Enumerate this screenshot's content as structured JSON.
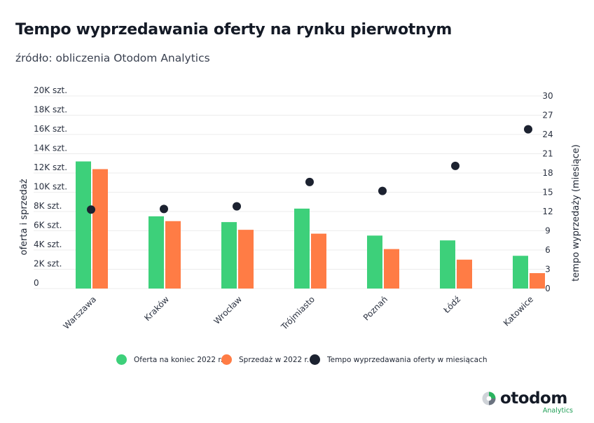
{
  "header": {
    "title": "Tempo wyprzedawania oferty na rynku pierwotnym",
    "subtitle": "źródło: obliczenia Otodom Analytics"
  },
  "colors": {
    "offer": "#3dd07a",
    "sales": "#ff7c45",
    "tempo": "#1c2230",
    "grid": "#ececec"
  },
  "chart_data": {
    "type": "bar",
    "categories": [
      "Warszawa",
      "Kraków",
      "Wrocław",
      "Trójmiasto",
      "Poznań",
      "Łódź",
      "Katowice"
    ],
    "series": [
      {
        "name": "Oferta na koniec 2022 r.",
        "type": "bar",
        "axis": "left",
        "values": [
          13200,
          7500,
          6900,
          8300,
          5500,
          5000,
          3400
        ]
      },
      {
        "name": "Sprzedaż w 2022 r.",
        "type": "bar",
        "axis": "left",
        "values": [
          12400,
          7000,
          6100,
          5700,
          4100,
          3000,
          1600
        ]
      },
      {
        "name": "Tempo wyprzedawania oferty w miesiącach",
        "type": "scatter",
        "axis": "right",
        "values": [
          12.3,
          12.4,
          12.8,
          16.6,
          15.2,
          19.1,
          24.8
        ]
      }
    ],
    "y_left": {
      "label": "oferta i sprzedaż",
      "ylim": [
        0,
        20000
      ],
      "ticks": [
        0,
        2000,
        4000,
        6000,
        8000,
        10000,
        12000,
        14000,
        16000,
        18000,
        20000
      ],
      "tick_labels": [
        "0",
        "2K szt.",
        "4K szt.",
        "6K szt.",
        "8K szt.",
        "10K szt.",
        "12K szt.",
        "14K szt.",
        "16K szt.",
        "18K szt.",
        "20K szt."
      ]
    },
    "y_right": {
      "label": "tempo wyprzedaży (miesiące)",
      "ylim": [
        0,
        30
      ],
      "ticks": [
        0,
        3,
        6,
        9,
        12,
        15,
        18,
        21,
        24,
        27,
        30
      ],
      "tick_labels": [
        "0",
        "3",
        "6",
        "9",
        "12",
        "15",
        "18",
        "21",
        "24",
        "27",
        "30"
      ]
    },
    "grid": true,
    "legend_position": "bottom"
  },
  "legend": {
    "items": [
      {
        "label": "Oferta na koniec 2022 r.",
        "color": "#3dd07a"
      },
      {
        "label": "Sprzedaż w 2022 r.",
        "color": "#ff7c45"
      },
      {
        "label": "Tempo wyprzedawania oferty w miesiącach",
        "color": "#1c2230"
      }
    ]
  },
  "brand": {
    "name": "otodom",
    "tagline": "Analytics"
  }
}
